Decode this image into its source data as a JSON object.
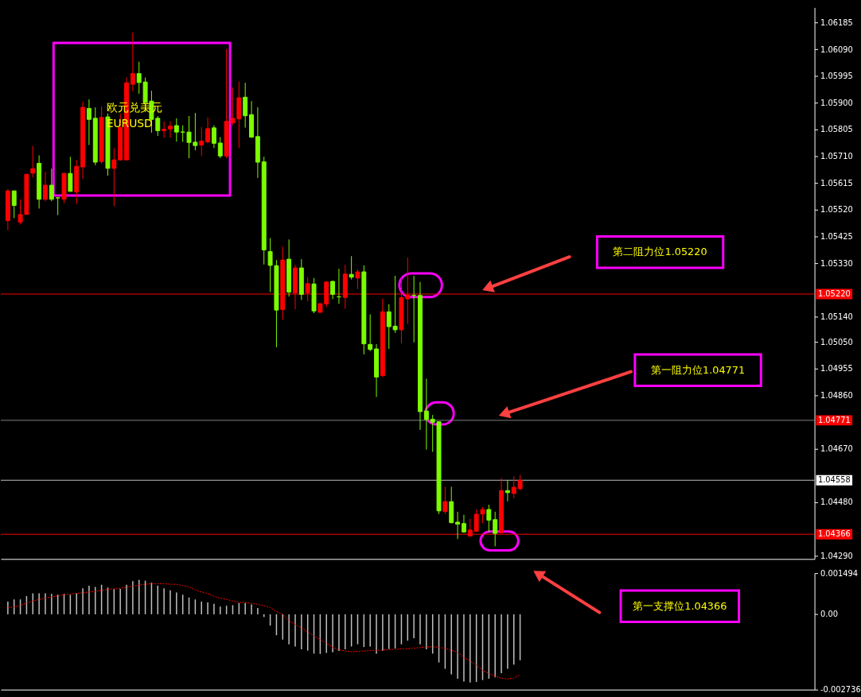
{
  "chart_data": [
    {
      "type": "candlestick",
      "categories": [
        null,
        null,
        null,
        null,
        null,
        null,
        null,
        null,
        null,
        null,
        null,
        null,
        null,
        null,
        null,
        null,
        null,
        null,
        null,
        null,
        null,
        null,
        null,
        null,
        null,
        null,
        null,
        null,
        null,
        null,
        null,
        null,
        null,
        null,
        null,
        null,
        null,
        null,
        null,
        null,
        null,
        null,
        null,
        null,
        null,
        null,
        null,
        null,
        null,
        null,
        null,
        null,
        null,
        null,
        null,
        null,
        null,
        null,
        null,
        null,
        null,
        null,
        null,
        null,
        null,
        null,
        null,
        null,
        null,
        null,
        null,
        null,
        null,
        null,
        null,
        null,
        null,
        null,
        null,
        null,
        null,
        null,
        null,
        null,
        null,
        null,
        null,
        null,
        null,
        null,
        null,
        null,
        null,
        null,
        null,
        null,
        null,
        null,
        null,
        null,
        null,
        null,
        null,
        null,
        null,
        null,
        null,
        null,
        null,
        null,
        null,
        null,
        null,
        null,
        null,
        null,
        null,
        null,
        null,
        null,
        null,
        null,
        null,
        null,
        null,
        null,
        null,
        null,
        null
      ],
      "ohlc": [
        [
          1.05481,
          1.05593,
          1.05447,
          1.05587
        ],
        [
          1.05587,
          1.05587,
          1.0549,
          1.05535
        ],
        [
          1.05476,
          1.05557,
          1.05467,
          1.05503
        ],
        [
          1.05503,
          1.05646,
          1.05503,
          1.05646
        ],
        [
          1.0565,
          1.05747,
          1.05635,
          1.05666
        ],
        [
          1.05685,
          1.05713,
          1.05524,
          1.05557
        ],
        [
          1.05557,
          1.05655,
          1.0555,
          1.05607
        ],
        [
          1.05607,
          1.05666,
          1.0555,
          1.05557
        ],
        [
          1.05562,
          1.05565,
          1.05501,
          1.05562
        ],
        [
          1.05557,
          1.05652,
          1.05543,
          1.05649
        ],
        [
          1.05649,
          1.05708,
          1.05585,
          1.05585
        ],
        [
          1.05583,
          1.05697,
          1.05541,
          1.05674
        ],
        [
          1.05672,
          1.05904,
          1.0563,
          1.05884
        ],
        [
          1.0588,
          1.05912,
          1.0575,
          1.05841
        ],
        [
          1.05845,
          1.05884,
          1.05678,
          1.05689
        ],
        [
          1.05691,
          1.05887,
          1.05683,
          1.05848
        ],
        [
          1.0585,
          1.05862,
          1.05641,
          1.05667
        ],
        [
          1.05667,
          1.05739,
          1.05532,
          1.05697
        ],
        [
          1.05697,
          1.05862,
          1.05695,
          1.05812
        ],
        [
          1.05697,
          1.0599,
          1.05697,
          1.05971
        ],
        [
          1.05966,
          1.0615,
          1.05941,
          1.06004
        ],
        [
          1.06004,
          1.06046,
          1.05932,
          1.05972
        ],
        [
          1.05974,
          1.0599,
          1.05867,
          1.05902
        ],
        [
          1.05906,
          1.05943,
          1.05794,
          1.05841
        ],
        [
          1.05845,
          1.05853,
          1.05782,
          1.05801
        ],
        [
          1.05801,
          1.05834,
          1.05776,
          1.05806
        ],
        [
          1.05807,
          1.05834,
          1.05776,
          1.05817
        ],
        [
          1.05819,
          1.05845,
          1.05762,
          1.05796
        ],
        [
          1.05796,
          1.0582,
          1.05761,
          1.05796
        ],
        [
          1.05796,
          1.05853,
          1.05703,
          1.05759
        ],
        [
          1.0576,
          1.05864,
          1.05731,
          1.05748
        ],
        [
          1.0575,
          1.05814,
          1.05711,
          1.05764
        ],
        [
          1.05761,
          1.05848,
          1.05756,
          1.05808
        ],
        [
          1.05811,
          1.0582,
          1.05739,
          1.05756
        ],
        [
          1.05757,
          1.05778,
          1.05703,
          1.05711
        ],
        [
          1.05711,
          1.06091,
          1.05703,
          1.05834
        ],
        [
          1.05829,
          1.05954,
          1.0582,
          1.05845
        ],
        [
          1.05843,
          1.05976,
          1.05739,
          1.05918
        ],
        [
          1.0592,
          1.05971,
          1.05812,
          1.05854
        ],
        [
          1.05858,
          1.05906,
          1.05775,
          1.05778
        ],
        [
          1.0578,
          1.05884,
          1.05633,
          1.05689
        ],
        [
          1.0569,
          1.05708,
          1.05325,
          1.05377
        ],
        [
          1.05371,
          1.05419,
          1.05227,
          1.05322
        ],
        [
          1.05321,
          1.05341,
          1.05031,
          1.05163
        ],
        [
          1.05165,
          1.05389,
          1.05129,
          1.05341
        ],
        [
          1.05344,
          1.05414,
          1.05211,
          1.05227
        ],
        [
          1.05224,
          1.05324,
          1.05166,
          1.05313
        ],
        [
          1.05313,
          1.05344,
          1.05199,
          1.05219
        ],
        [
          1.05224,
          1.0528,
          1.05194,
          1.05257
        ],
        [
          1.05256,
          1.05277,
          1.05152,
          1.0516
        ],
        [
          1.05155,
          1.05186,
          1.05155,
          1.05186
        ],
        [
          1.05185,
          1.05266,
          1.05174,
          1.05263
        ],
        [
          1.05265,
          1.05268,
          1.05202,
          1.05219
        ],
        [
          1.0521,
          1.0531,
          1.05185,
          1.0521
        ],
        [
          1.05208,
          1.05324,
          1.05168,
          1.05291
        ],
        [
          1.0529,
          1.05355,
          1.05272,
          1.0528
        ],
        [
          1.05277,
          1.05308,
          1.05238,
          1.05299
        ],
        [
          1.05299,
          1.05322,
          1.05005,
          1.05043
        ],
        [
          1.05041,
          1.05148,
          1.05017,
          1.05023
        ],
        [
          1.05025,
          1.05042,
          1.04854,
          1.04925
        ],
        [
          1.0493,
          1.05204,
          1.04925,
          1.05157
        ],
        [
          1.05157,
          1.05184,
          1.05025,
          1.05104
        ],
        [
          1.05106,
          1.05285,
          1.05082,
          1.05093
        ],
        [
          1.05093,
          1.05282,
          1.05045,
          1.05207
        ],
        [
          1.05203,
          1.0535,
          1.05113,
          1.05216
        ],
        [
          1.05215,
          1.05285,
          1.05048,
          1.05215
        ],
        [
          1.05215,
          1.05263,
          1.04737,
          1.04802
        ],
        [
          1.04804,
          1.04919,
          1.04667,
          1.04774
        ],
        [
          1.04775,
          1.0479,
          1.04659,
          1.04764
        ],
        [
          1.04766,
          1.04766,
          1.04438,
          1.04449
        ],
        [
          1.04447,
          1.04535,
          1.04438,
          1.04482
        ],
        [
          1.04482,
          1.04535,
          1.04405,
          1.04407
        ],
        [
          1.04409,
          1.04446,
          1.04349,
          1.04402
        ],
        [
          1.04404,
          1.04435,
          1.04371,
          1.04374
        ],
        [
          1.0436,
          1.04421,
          1.04357,
          1.04381
        ],
        [
          1.04377,
          1.04454,
          1.04374,
          1.04437
        ],
        [
          1.04438,
          1.04463,
          1.04405,
          1.04454
        ],
        [
          1.04454,
          1.04471,
          1.04374,
          1.04416
        ],
        [
          1.04418,
          1.04446,
          1.04323,
          1.04369
        ],
        [
          1.04371,
          1.04566,
          1.04371,
          1.04521
        ],
        [
          1.04521,
          1.04558,
          1.04483,
          1.04514
        ],
        [
          1.04511,
          1.04572,
          1.04494,
          1.04533
        ],
        [
          1.04528,
          1.04577,
          1.04522,
          1.04558
        ],
        null,
        null,
        null,
        null,
        null,
        null,
        null,
        null,
        null,
        null,
        null,
        null,
        null,
        null,
        null,
        null,
        null,
        null,
        null,
        null,
        null,
        null,
        null,
        null,
        null,
        null,
        null,
        null,
        null,
        null,
        null,
        null,
        null,
        null,
        null,
        null,
        null,
        null,
        null,
        null,
        null,
        null,
        null,
        null,
        null,
        null
      ],
      "colors": [
        "#ff0000",
        "#7cfc00",
        "#ff0000",
        "#ff0000",
        "#ff0000",
        "#7cfc00",
        "#ff0000",
        "#7cfc00",
        "#7cfc00",
        "#ff0000",
        "#7cfc00",
        "#ff0000",
        "#ff0000",
        "#7cfc00",
        "#7cfc00",
        "#ff0000",
        "#7cfc00",
        "#ff0000",
        "#ff0000",
        "#ff0000",
        "#ff0000",
        "#7cfc00",
        "#7cfc00",
        "#7cfc00",
        "#7cfc00",
        "#ff0000",
        "#ff0000",
        "#7cfc00",
        "#7cfc00",
        "#7cfc00",
        "#7cfc00",
        "#ff0000",
        "#ff0000",
        "#7cfc00",
        "#7cfc00",
        "#ff0000",
        "#ff0000",
        "#ff0000",
        "#7cfc00",
        "#7cfc00",
        "#7cfc00",
        "#7cfc00",
        "#7cfc00",
        "#7cfc00",
        "#ff0000",
        "#7cfc00",
        "#ff0000",
        "#7cfc00",
        "#ff0000",
        "#7cfc00",
        "#ff0000",
        "#ff0000",
        "#7cfc00",
        "#7cfc00",
        "#ff0000",
        "#7cfc00",
        "#ff0000",
        "#7cfc00",
        "#7cfc00",
        "#7cfc00",
        "#ff0000",
        "#7cfc00",
        "#7cfc00",
        "#ff0000",
        "#ff0000",
        "#7cfc00",
        "#7cfc00",
        "#7cfc00",
        "#7cfc00",
        "#7cfc00",
        "#ff0000",
        "#7cfc00",
        "#7cfc00",
        "#7cfc00",
        "#ff0000",
        "#ff0000",
        "#ff0000",
        "#7cfc00",
        "#7cfc00",
        "#ff0000",
        "#7cfc00",
        "#ff0000",
        "#ff0000",
        null,
        null,
        null,
        null,
        null,
        null,
        null,
        null,
        null,
        null,
        null,
        null,
        null,
        null,
        null,
        null,
        null,
        null,
        null,
        null,
        null,
        null,
        null,
        null,
        null,
        null,
        null,
        null,
        null,
        null,
        null,
        null,
        null,
        null,
        null,
        null,
        null,
        null,
        null,
        null,
        null,
        null,
        null,
        null,
        null,
        null
      ],
      "ylim": [
        1.04278,
        1.06239
      ],
      "yticks": [
        {
          "value": 1.06185,
          "label": "1.06185"
        },
        {
          "value": 1.0609,
          "label": "1.06090"
        },
        {
          "value": 1.05995,
          "label": "1.05995"
        },
        {
          "value": 1.059,
          "label": "1.05900"
        },
        {
          "value": 1.05805,
          "label": "1.05805"
        },
        {
          "value": 1.0571,
          "label": "1.05710"
        },
        {
          "value": 1.05615,
          "label": "1.05615"
        },
        {
          "value": 1.0552,
          "label": "1.05520"
        },
        {
          "value": 1.05425,
          "label": "1.05425"
        },
        {
          "value": 1.0533,
          "label": "1.05330"
        },
        {
          "value": 1.0514,
          "label": "1.05140"
        },
        {
          "value": 1.0505,
          "label": "1.05050"
        },
        {
          "value": 1.04955,
          "label": "1.04955"
        },
        {
          "value": 1.0486,
          "label": "1.04860"
        },
        {
          "value": 1.0467,
          "label": "1.04670"
        },
        {
          "value": 1.0448,
          "label": "1.04480"
        },
        {
          "value": 1.0429,
          "label": "1.04290"
        }
      ],
      "tick_labels": "y",
      "ref_lines": [
        {
          "axis": "y",
          "value": 1.0522,
          "label": "1.05220",
          "color": "#ff0000"
        },
        {
          "axis": "y",
          "value": 1.04771,
          "label": "1.04771",
          "color": "#808080"
        },
        {
          "axis": "y",
          "value": 1.04558,
          "label": "1.04558",
          "color": "#c0c0c0"
        },
        {
          "axis": "y",
          "value": 1.04366,
          "label": "1.04366",
          "color": "#ff0000"
        }
      ],
      "annotations": [
        "欧元兑美元",
        "EURUSD",
        "第二阻力位1.05220",
        "第一阻力位1.04771"
      ]
    },
    {
      "type": "bar",
      "categories": [
        null,
        null,
        null,
        null,
        null,
        null,
        null,
        null,
        null,
        null,
        null,
        null,
        null,
        null,
        null,
        null,
        null,
        null,
        null,
        null,
        null,
        null,
        null,
        null,
        null,
        null,
        null,
        null,
        null,
        null,
        null,
        null,
        null,
        null,
        null,
        null,
        null,
        null,
        null,
        null,
        null,
        null,
        null,
        null,
        null,
        null,
        null,
        null,
        null,
        null,
        null,
        null,
        null,
        null,
        null,
        null,
        null,
        null,
        null,
        null,
        null,
        null,
        null,
        null,
        null,
        null,
        null,
        null,
        null,
        null,
        null,
        null,
        null,
        null,
        null,
        null,
        null,
        null,
        null,
        null,
        null,
        null,
        null,
        null,
        null,
        null,
        null,
        null,
        null,
        null,
        null,
        null,
        null,
        null,
        null,
        null,
        null,
        null,
        null,
        null,
        null,
        null,
        null,
        null,
        null,
        null,
        null,
        null,
        null,
        null,
        null,
        null,
        null,
        null,
        null,
        null,
        null,
        null,
        null,
        null,
        null,
        null,
        null,
        null,
        null,
        null,
        null,
        null,
        null
      ],
      "series": [
        {
          "type": "bar",
          "color": "#c0c0c0",
          "values": [
            0.00046,
            0.00054,
            0.00054,
            0.00066,
            0.00076,
            0.00076,
            0.00076,
            0.00074,
            0.00071,
            0.00074,
            0.00071,
            0.00076,
            0.00094,
            0.00104,
            0.00099,
            0.00107,
            0.00097,
            0.00092,
            0.00092,
            0.00107,
            0.0012,
            0.00125,
            0.00122,
            0.00115,
            0.00104,
            0.00094,
            0.00087,
            0.00079,
            0.00071,
            0.00061,
            0.00054,
            0.00046,
            0.00043,
            0.00038,
            0.00028,
            0.00031,
            0.00033,
            0.00041,
            0.00041,
            0.00036,
            0.00023,
            -0.0001,
            -0.00041,
            -0.00076,
            -0.00092,
            -0.00109,
            -0.00117,
            -0.00127,
            -0.00132,
            -0.00143,
            -0.00144,
            -0.0014,
            -0.00138,
            -0.00133,
            -0.00127,
            -0.00117,
            -0.00109,
            -0.00119,
            -0.00117,
            -0.00143,
            -0.00132,
            -0.00126,
            -0.00124,
            -0.00109,
            -0.00096,
            -0.00087,
            -0.00109,
            -0.00127,
            -0.00143,
            -0.00175,
            -0.00198,
            -0.00218,
            -0.00234,
            -0.00244,
            -0.00248,
            -0.00246,
            -0.00239,
            -0.00234,
            -0.00229,
            -0.00214,
            -0.00198,
            -0.00183,
            -0.00167,
            null,
            null,
            null,
            null,
            null,
            null,
            null,
            null,
            null,
            null,
            null,
            null,
            null,
            null,
            null,
            null,
            null,
            null,
            null,
            null,
            null,
            null,
            null,
            null,
            null,
            null,
            null,
            null,
            null,
            null,
            null,
            null,
            null,
            null,
            null,
            null,
            null,
            null,
            null,
            null,
            null,
            null,
            null,
            null,
            null,
            null
          ]
        },
        {
          "type": "line",
          "color": "#ff0000",
          "line_style": "dotted",
          "values": [
            0.00024,
            0.00027,
            0.00031,
            0.00041,
            0.00048,
            0.00054,
            0.00059,
            0.00063,
            0.00067,
            0.00071,
            0.00073,
            0.00076,
            0.00078,
            0.00081,
            0.00083,
            0.00087,
            0.00091,
            0.00092,
            0.00094,
            0.00099,
            0.00102,
            0.00106,
            0.00109,
            0.00111,
            0.00111,
            0.00111,
            0.00109,
            0.00109,
            0.00104,
            0.001,
            0.00088,
            0.00081,
            0.00075,
            0.00065,
            0.00059,
            0.00054,
            0.00048,
            0.00043,
            0.00043,
            0.0004,
            0.00036,
            0.00031,
            0.00024,
            0.0001,
            0.0,
            -0.00024,
            -0.00037,
            -0.00049,
            -0.00064,
            -0.00079,
            -0.00092,
            -0.00105,
            -0.0012,
            -0.00129,
            -0.00133,
            -0.00136,
            -0.00135,
            -0.00133,
            -0.00132,
            -0.00131,
            -0.0013,
            -0.00128,
            -0.00127,
            -0.00126,
            -0.00125,
            -0.00123,
            -0.00121,
            -0.00119,
            -0.00118,
            -0.0012,
            -0.00124,
            -0.00131,
            -0.00138,
            -0.00157,
            -0.0017,
            -0.00185,
            -0.00204,
            -0.00215,
            -0.00225,
            -0.00232,
            -0.00235,
            -0.00232,
            -0.00219,
            null,
            null,
            null,
            null,
            null,
            null,
            null,
            null,
            null,
            null,
            null,
            null,
            null,
            null,
            null,
            null,
            null,
            null,
            null,
            null,
            null,
            null,
            null,
            null,
            null,
            null,
            null,
            null,
            null,
            null,
            null,
            null,
            null,
            null,
            null,
            null,
            null,
            null,
            null,
            null,
            null,
            null,
            null,
            null,
            null,
            null
          ]
        }
      ],
      "ylim": [
        -0.002736,
        0.001494
      ],
      "yticks": [
        {
          "value": 0.001494,
          "label": "0.001494"
        },
        {
          "value": 0,
          "label": "0.00"
        },
        {
          "value": -0.002736,
          "label": "-0.002736"
        }
      ],
      "tick_labels": "y",
      "annotations": [
        "第一支撑位1.04366"
      ]
    }
  ]
}
